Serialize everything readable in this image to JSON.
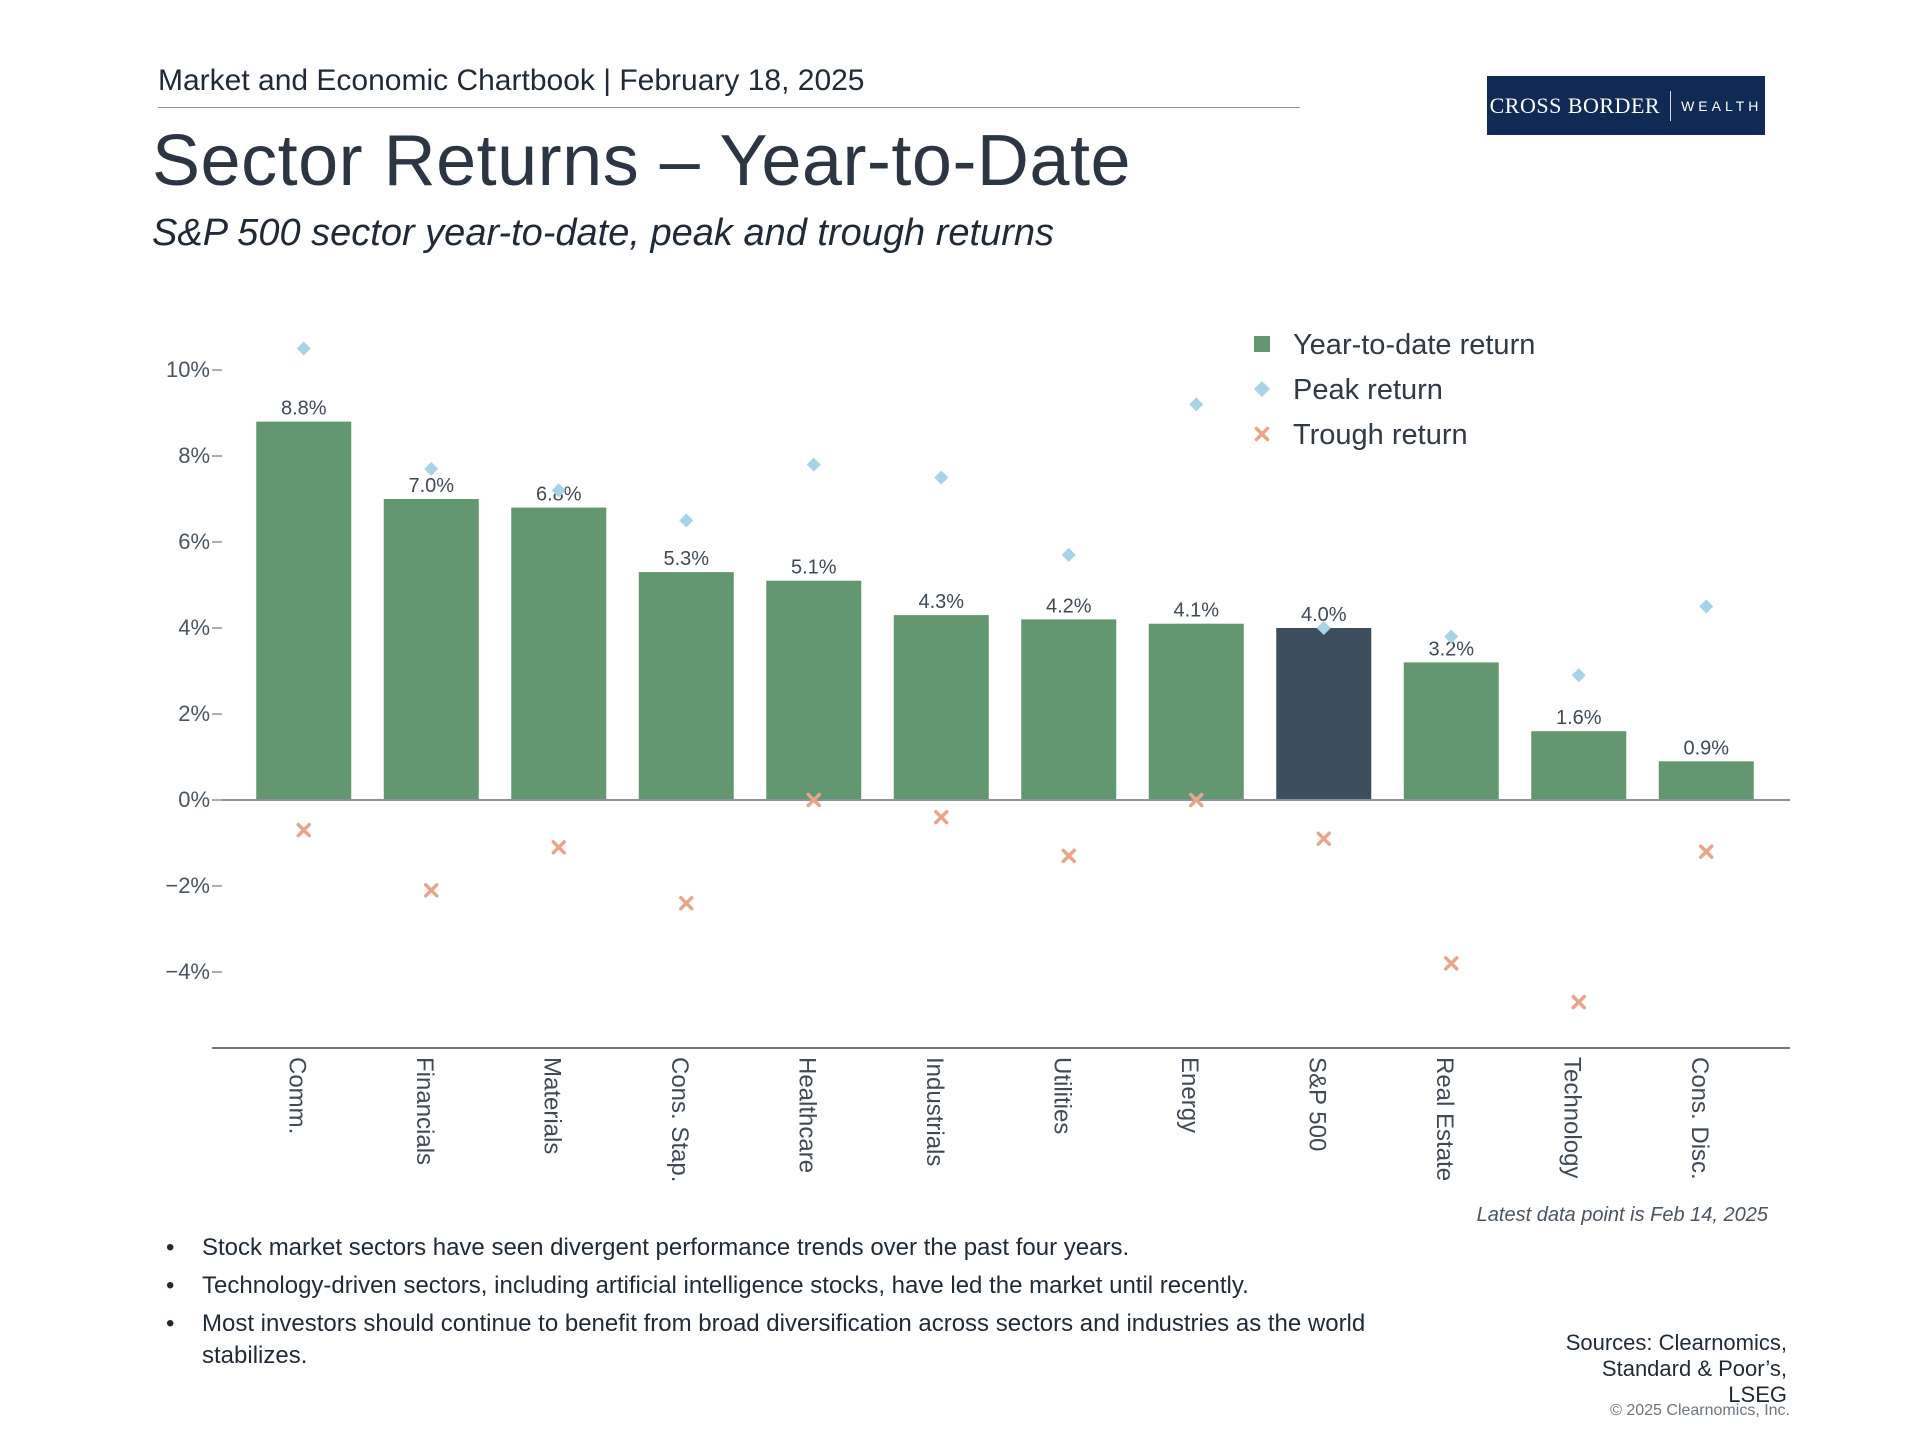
{
  "header": {
    "chartbook_line": "Market and Economic Chartbook | February 18, 2025",
    "title": "Sector Returns – Year-to-Date",
    "subtitle": "S&P 500 sector year-to-date, peak and trough returns"
  },
  "logo": {
    "left": "CROSS BORDER",
    "right": "WEALTH",
    "bg_color": "#0f2b55"
  },
  "chart_data": {
    "type": "bar",
    "categories": [
      "Comm.",
      "Financials",
      "Materials",
      "Cons. Stap.",
      "Healthcare",
      "Industrials",
      "Utilities",
      "Energy",
      "S&P 500",
      "Real Estate",
      "Technology",
      "Cons. Disc."
    ],
    "series": [
      {
        "name": "Year-to-date return",
        "type": "bar",
        "color": "#63976f",
        "highlight_color": "#3d4f5e",
        "highlight_category": "S&P 500",
        "values": [
          8.8,
          7.0,
          6.8,
          5.3,
          5.1,
          4.3,
          4.2,
          4.1,
          4.0,
          3.2,
          1.6,
          0.9
        ],
        "labels": [
          "8.8%",
          "7.0%",
          "6.8%",
          "5.3%",
          "5.1%",
          "4.3%",
          "4.2%",
          "4.1%",
          "4.0%",
          "3.2%",
          "1.6%",
          "0.9%"
        ]
      },
      {
        "name": "Peak return",
        "type": "scatter",
        "marker": "diamond",
        "color": "#a6d3e6",
        "values": [
          10.5,
          7.7,
          7.2,
          6.5,
          7.8,
          7.5,
          5.7,
          9.2,
          4.0,
          3.8,
          2.9,
          4.5
        ]
      },
      {
        "name": "Trough return",
        "type": "scatter",
        "marker": "x",
        "color": "#e8a58c",
        "values": [
          -0.7,
          -2.1,
          -1.1,
          -2.4,
          0.0,
          -0.4,
          -1.3,
          0.0,
          -0.9,
          -3.8,
          -4.7,
          -1.2
        ]
      }
    ],
    "y_ticks": [
      10,
      8,
      6,
      4,
      2,
      0,
      -2,
      -4
    ],
    "y_tick_labels": [
      "10%",
      "8%",
      "6%",
      "4%",
      "2%",
      "0%",
      "−2%",
      "−4%"
    ],
    "ylim": [
      -5.8,
      11.5
    ],
    "grid": false,
    "legend": "top-right"
  },
  "footnote": "Latest data point is Feb 14, 2025",
  "bullets": [
    "Stock market sectors have seen divergent performance trends over the past four years.",
    "Technology-driven sectors, including artificial intelligence stocks, have led the market until recently.",
    "Most investors should continue to benefit from broad diversification across sectors and industries as the world stabilizes."
  ],
  "sources": [
    "Sources: Clearnomics,",
    "Standard & Poor’s,",
    "LSEG"
  ],
  "copyright": "© 2025 Clearnomics, Inc."
}
